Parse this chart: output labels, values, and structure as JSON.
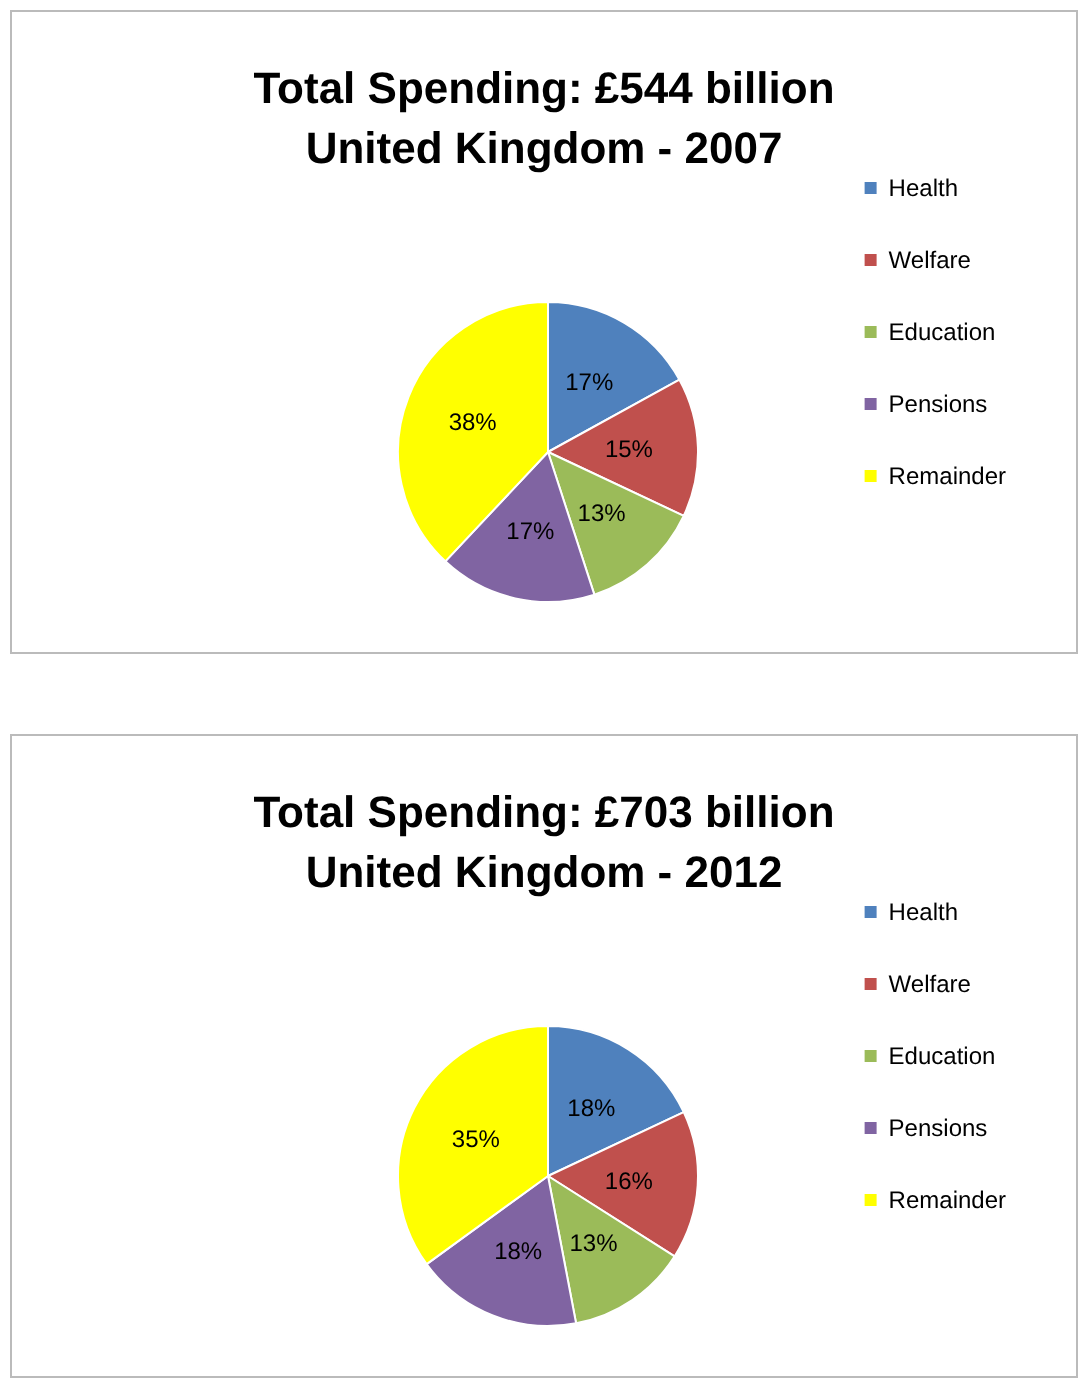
{
  "chart_data": [
    {
      "type": "pie",
      "title": "Total Spending: £544 billion\nUnited Kingdom - 2007",
      "categories": [
        "Health",
        "Welfare",
        "Education",
        "Pensions",
        "Remainder"
      ],
      "values": [
        17,
        15,
        13,
        17,
        38
      ],
      "value_labels": [
        "17%",
        "15%",
        "13%",
        "17%",
        "38%"
      ],
      "colors": [
        "#4f81bd",
        "#c0504d",
        "#9bbb59",
        "#8064a2",
        "#ffff00"
      ],
      "legend": "right"
    },
    {
      "type": "pie",
      "title": "Total Spending: £703 billion\nUnited Kingdom - 2012",
      "categories": [
        "Health",
        "Welfare",
        "Education",
        "Pensions",
        "Remainder"
      ],
      "values": [
        18,
        16,
        13,
        18,
        35
      ],
      "value_labels": [
        "18%",
        "16%",
        "13%",
        "18%",
        "35%"
      ],
      "colors": [
        "#4f81bd",
        "#c0504d",
        "#9bbb59",
        "#8064a2",
        "#ffff00"
      ],
      "legend": "right"
    }
  ]
}
